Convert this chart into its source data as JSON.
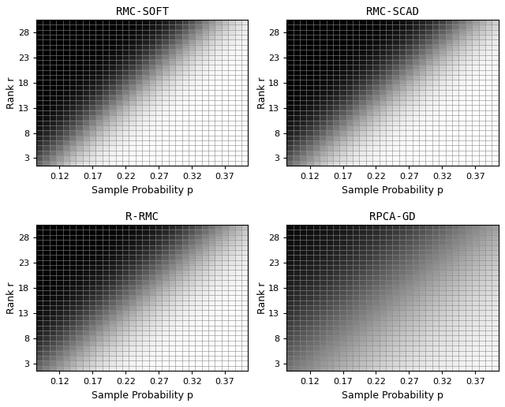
{
  "titles": [
    "RMC-SOFT",
    "RMC-SCAD",
    "R-RMC",
    "RPCA-GD"
  ],
  "p_min": 0.09,
  "p_max": 0.4,
  "p_step": 0.01,
  "r_min": 2,
  "r_max": 30,
  "r_step": 1,
  "xlabel": "Sample Probability p",
  "ylabel": "Rank r",
  "xticks": [
    0.12,
    0.17,
    0.22,
    0.27,
    0.32,
    0.37
  ],
  "yticks": [
    3,
    8,
    13,
    18,
    23,
    28
  ],
  "figsize": [
    6.4,
    5.16
  ],
  "dpi": 100,
  "boundary_slope": [
    0.0086,
    0.0091,
    0.0092,
    0.0093
  ],
  "boundary_intercept": [
    0.083,
    0.082,
    0.082,
    0.082
  ],
  "sharpness": [
    35,
    30,
    25,
    12
  ],
  "title_fontsize": 10,
  "label_fontsize": 9,
  "tick_fontsize": 8
}
